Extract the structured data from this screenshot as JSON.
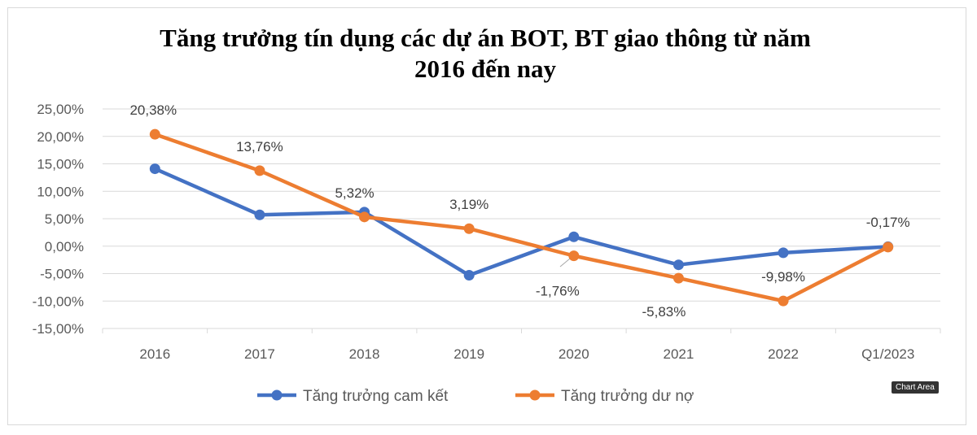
{
  "chart_data": {
    "type": "line",
    "title_lines": [
      "Tăng trưởng tín dụng các dự án BOT, BT giao thông từ năm",
      "2016 đến nay"
    ],
    "categories": [
      "2016",
      "2017",
      "2018",
      "2019",
      "2020",
      "2021",
      "2022",
      "Q1/2023"
    ],
    "ylim": [
      -15,
      25
    ],
    "yticks": [
      "25,00%",
      "20,00%",
      "15,00%",
      "10,00%",
      "5,00%",
      "0,00%",
      "-5,00%",
      "-10,00%",
      "-15,00%"
    ],
    "grid": true,
    "legend_position": "bottom",
    "series": [
      {
        "name": "Tăng trưởng cam kết",
        "color": "#4472c4",
        "values": [
          14.1,
          5.7,
          6.2,
          -5.3,
          1.7,
          -3.4,
          -1.2,
          -0.1
        ],
        "labels": []
      },
      {
        "name": "Tăng trưởng dư nợ",
        "color": "#ed7d31",
        "values": [
          20.38,
          13.76,
          5.32,
          3.19,
          -1.76,
          -5.83,
          -9.98,
          -0.17
        ],
        "labels": [
          "20,38%",
          "13,76%",
          "5,32%",
          "3,19%",
          "-1,76%",
          "-5,83%",
          "-9,98%",
          "-0,17%"
        ]
      }
    ]
  },
  "tooltip": "Chart Area"
}
